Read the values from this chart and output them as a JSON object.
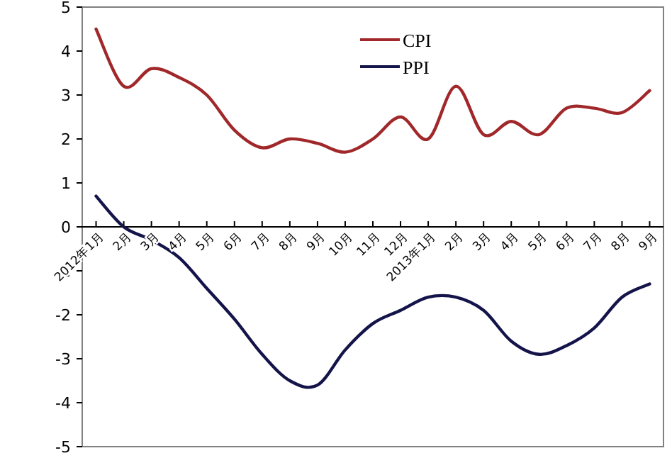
{
  "chart_data": {
    "type": "line",
    "categories": [
      "2012年1月",
      "2月",
      "3月",
      "4月",
      "5月",
      "6月",
      "7月",
      "8月",
      "9月",
      "10月",
      "11月",
      "12月",
      "2013年1月",
      "2月",
      "3月",
      "4月",
      "5月",
      "6月",
      "7月",
      "8月",
      "9月"
    ],
    "series": [
      {
        "name": "CPI",
        "color": "#a0282a",
        "values": [
          4.5,
          3.2,
          3.6,
          3.4,
          3.0,
          2.2,
          1.8,
          2.0,
          1.9,
          1.7,
          2.0,
          2.5,
          2.0,
          3.2,
          2.1,
          2.4,
          2.1,
          2.7,
          2.7,
          2.6,
          3.1
        ]
      },
      {
        "name": "PPI",
        "color": "#14144a",
        "values": [
          0.7,
          0.0,
          -0.3,
          -0.7,
          -1.4,
          -2.1,
          -2.9,
          -3.5,
          -3.6,
          -2.8,
          -2.2,
          -1.9,
          -1.6,
          -1.6,
          -1.9,
          -2.6,
          -2.9,
          -2.7,
          -2.3,
          -1.6,
          -1.3
        ]
      }
    ],
    "ylim": [
      -5,
      5
    ],
    "yticks": [
      -5,
      -4,
      -3,
      -2,
      -1,
      0,
      1,
      2,
      3,
      4,
      5
    ],
    "legend": "top"
  }
}
